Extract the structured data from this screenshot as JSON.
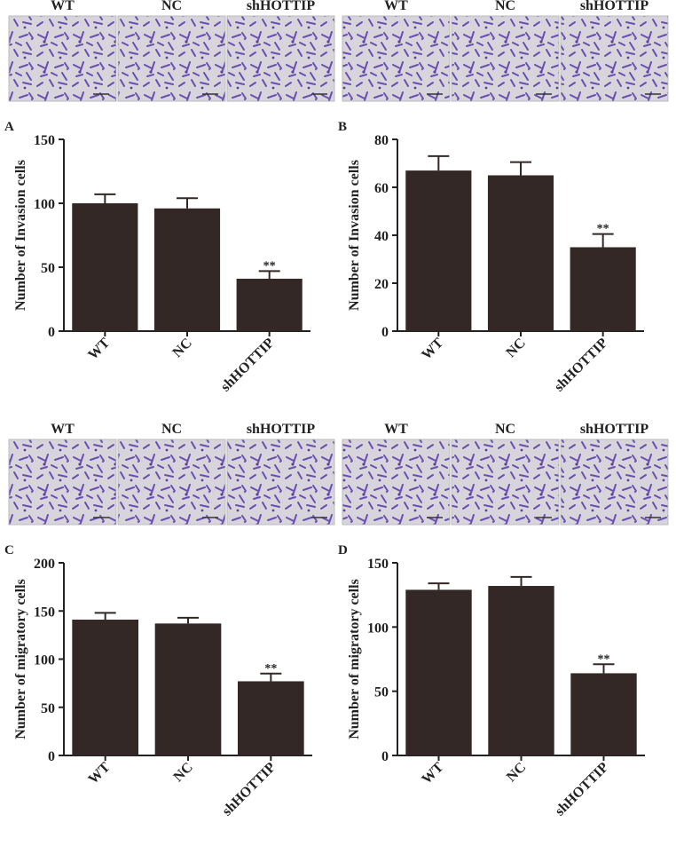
{
  "image_panels": [
    {
      "labels": [
        "WT",
        "NC",
        "shHOTTIP"
      ]
    },
    {
      "labels": [
        "WT",
        "NC",
        "shHOTTIP"
      ]
    },
    {
      "labels": [
        "WT",
        "NC",
        "shHOTTIP"
      ]
    },
    {
      "labels": [
        "WT",
        "NC",
        "shHOTTIP"
      ]
    }
  ],
  "chart_data": [
    {
      "type": "bar",
      "panel": "A",
      "ylabel": "Number of Invasion cells",
      "categories": [
        "WT",
        "NC",
        "shHOTTIP"
      ],
      "values": [
        100,
        96,
        41
      ],
      "errors": [
        7,
        8,
        6
      ],
      "color": "#332826",
      "ylim": [
        0,
        150
      ],
      "yticks": [
        0,
        50,
        100,
        150
      ],
      "annotations": [
        {
          "text": "**",
          "category": "shHOTTIP"
        }
      ]
    },
    {
      "type": "bar",
      "panel": "B",
      "ylabel": "Number of Invasion cells",
      "categories": [
        "WT",
        "NC",
        "shHOTTIP"
      ],
      "values": [
        67,
        65,
        35
      ],
      "errors": [
        6,
        5.5,
        5.5
      ],
      "color": "#332826",
      "ylim": [
        0,
        80
      ],
      "yticks": [
        0,
        20,
        40,
        60,
        80
      ],
      "annotations": [
        {
          "text": "**",
          "category": "shHOTTIP"
        }
      ]
    },
    {
      "type": "bar",
      "panel": "C",
      "ylabel": "Number of migratory cells",
      "categories": [
        "WT",
        "NC",
        "shHOTTIP"
      ],
      "values": [
        141,
        137,
        77
      ],
      "errors": [
        7,
        6,
        8
      ],
      "color": "#332826",
      "ylim": [
        0,
        200
      ],
      "yticks": [
        0,
        50,
        100,
        150,
        200
      ],
      "annotations": [
        {
          "text": "**",
          "category": "shHOTTIP"
        }
      ]
    },
    {
      "type": "bar",
      "panel": "D",
      "ylabel": "Number of migratory cells",
      "categories": [
        "WT",
        "NC",
        "shHOTTIP"
      ],
      "values": [
        129,
        132,
        64
      ],
      "errors": [
        5,
        7,
        7
      ],
      "color": "#332826",
      "ylim": [
        0,
        150
      ],
      "yticks": [
        0,
        50,
        100,
        150
      ],
      "annotations": [
        {
          "text": "**",
          "category": "shHOTTIP"
        }
      ]
    }
  ]
}
